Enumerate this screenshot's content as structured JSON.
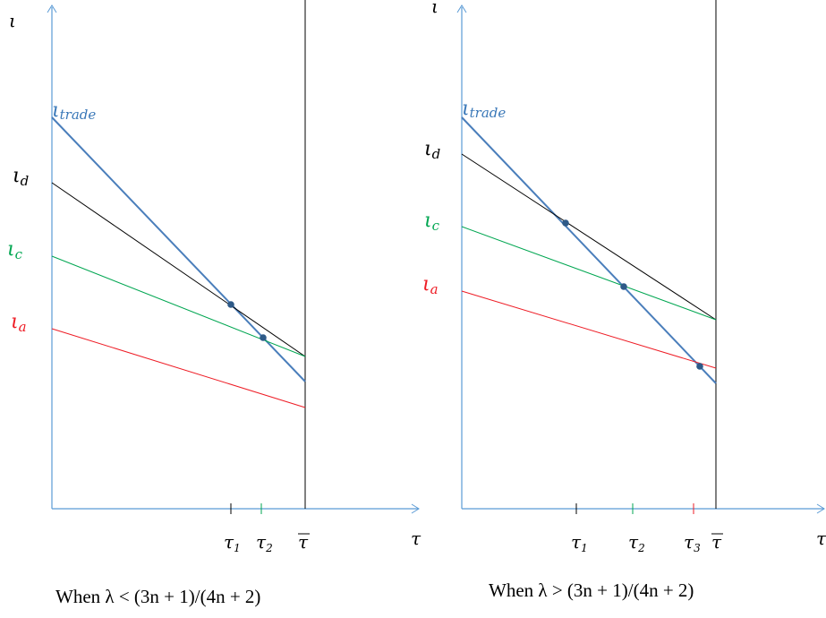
{
  "colors": {
    "axis": "#5b9bd5",
    "trade": "#4a7ebb",
    "black": "#000000",
    "green": "#00a651",
    "red": "#ee1c25",
    "dot": "#2e5a88"
  },
  "left": {
    "y_axis_label": "ι",
    "x_axis_label": "τ",
    "line_labels": {
      "trade": "ι",
      "trade_sub": "trade",
      "d": "ι",
      "d_sub": "d",
      "c": "ι",
      "c_sub": "c",
      "a": "ι",
      "a_sub": "a"
    },
    "ticks": {
      "t1": "τ",
      "t1_sub": "1",
      "t2": "τ",
      "t2_sub": "2",
      "tbar": "τ"
    },
    "caption": "When λ < (3n + 1)/(4n + 2)"
  },
  "right": {
    "y_axis_label": "ι",
    "x_axis_label": "τ",
    "line_labels": {
      "trade": "ι",
      "trade_sub": "trade",
      "d": "ι",
      "d_sub": "d",
      "c": "ι",
      "c_sub": "c",
      "a": "ι",
      "a_sub": "a"
    },
    "ticks": {
      "t1": "τ",
      "t1_sub": "1",
      "t2": "τ",
      "t2_sub": "2",
      "t3": "τ",
      "t3_sub": "3",
      "tbar": "τ"
    },
    "caption": "When λ > (3n + 1)/(4n + 2)"
  }
}
